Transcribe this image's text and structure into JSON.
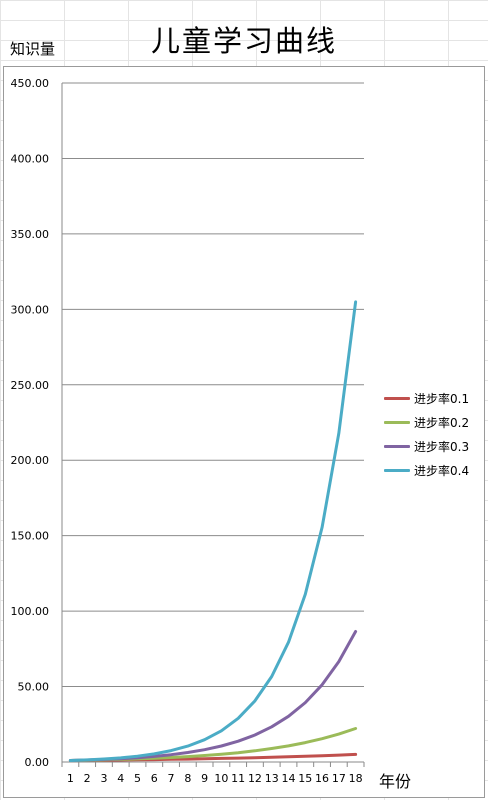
{
  "chart_data": {
    "type": "line",
    "title": "儿童学习曲线",
    "ylabel": "知识量",
    "xlabel": "年份",
    "x": [
      1,
      2,
      3,
      4,
      5,
      6,
      7,
      8,
      9,
      10,
      11,
      12,
      13,
      14,
      15,
      16,
      17,
      18
    ],
    "ylim": [
      0,
      450
    ],
    "yticks": [
      "0.00",
      "50.00",
      "100.00",
      "150.00",
      "200.00",
      "250.00",
      "300.00",
      "350.00",
      "400.00",
      "450.00"
    ],
    "ytick_values": [
      0,
      50,
      100,
      150,
      200,
      250,
      300,
      350,
      400,
      450
    ],
    "grid": true,
    "legend_position": "right",
    "series": [
      {
        "name": "进步率0.1",
        "color": "#c0504d",
        "values": [
          1.0,
          1.1,
          1.21,
          1.33,
          1.46,
          1.61,
          1.77,
          1.95,
          2.14,
          2.36,
          2.59,
          2.85,
          3.14,
          3.45,
          3.8,
          4.18,
          4.59,
          5.05
        ]
      },
      {
        "name": "进步率0.2",
        "color": "#9bbb59",
        "values": [
          1.0,
          1.2,
          1.44,
          1.73,
          2.07,
          2.49,
          2.99,
          3.58,
          4.3,
          5.16,
          6.19,
          7.43,
          8.92,
          10.7,
          12.84,
          15.41,
          18.49,
          22.19
        ]
      },
      {
        "name": "进步率0.3",
        "color": "#8064a2",
        "values": [
          1.0,
          1.3,
          1.69,
          2.2,
          2.86,
          3.71,
          4.83,
          6.27,
          8.16,
          10.6,
          13.79,
          17.92,
          23.3,
          30.29,
          39.37,
          51.19,
          66.54,
          86.5
        ]
      },
      {
        "name": "进步率0.4",
        "color": "#4bacc6",
        "values": [
          1.0,
          1.4,
          1.96,
          2.74,
          3.84,
          5.38,
          7.53,
          10.54,
          14.76,
          20.66,
          28.93,
          40.5,
          56.69,
          79.37,
          111.12,
          155.57,
          217.8,
          304.91
        ]
      }
    ]
  }
}
